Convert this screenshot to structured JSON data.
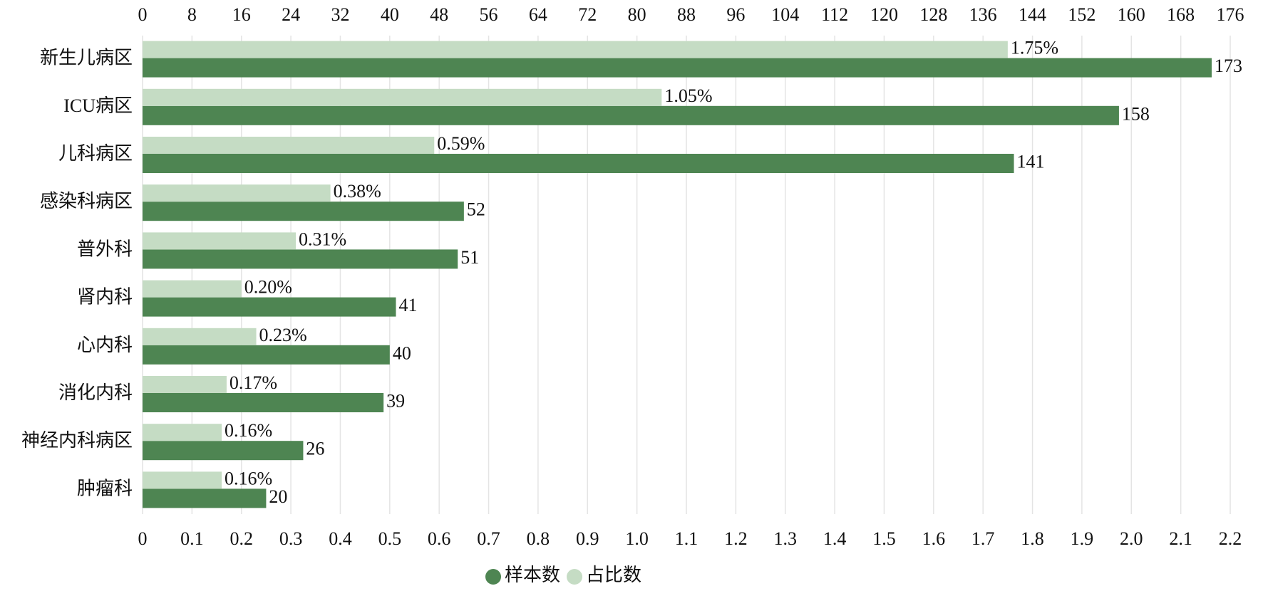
{
  "chart_data": {
    "type": "bar",
    "orientation": "horizontal",
    "categories": [
      "新生儿病区",
      "ICU病区",
      "儿科病区",
      "感染科病区",
      "普外科",
      "肾内科",
      "心内科",
      "消化内科",
      "神经内科病区",
      "肿瘤科"
    ],
    "series": [
      {
        "name": "样本数",
        "color": "#4e8552",
        "axis": "x2",
        "values": [
          173,
          158,
          141,
          52,
          51,
          41,
          40,
          39,
          26,
          20
        ]
      },
      {
        "name": "占比数",
        "color": "#c5dcc4",
        "axis": "x",
        "values": [
          1.75,
          1.05,
          0.59,
          0.38,
          0.31,
          0.2,
          0.23,
          0.17,
          0.16,
          0.16
        ],
        "value_labels": [
          "1.75%",
          "1.05%",
          "0.59%",
          "0.38%",
          "0.31%",
          "0.20%",
          "0.23%",
          "0.17%",
          "0.16%",
          "0.16%"
        ]
      }
    ],
    "xlim": [
      0,
      2.2
    ],
    "xticks": [
      0,
      0.1,
      0.2,
      0.3,
      0.4,
      0.5,
      0.6,
      0.7,
      0.8,
      0.9,
      {
        "value": 1,
        "label": "1.0"
      },
      1.1,
      1.2,
      1.3,
      1.4,
      1.5,
      1.6,
      1.7,
      1.8,
      1.9,
      {
        "value": 2,
        "label": "2.0"
      },
      2.1,
      2.2
    ],
    "x2lim": [
      0,
      176
    ],
    "x2ticks": [
      0,
      8,
      16,
      24,
      32,
      40,
      48,
      56,
      64,
      72,
      80,
      88,
      96,
      104,
      112,
      120,
      128,
      136,
      144,
      152,
      160,
      168,
      176
    ],
    "grid": true,
    "legend": "bottom"
  }
}
